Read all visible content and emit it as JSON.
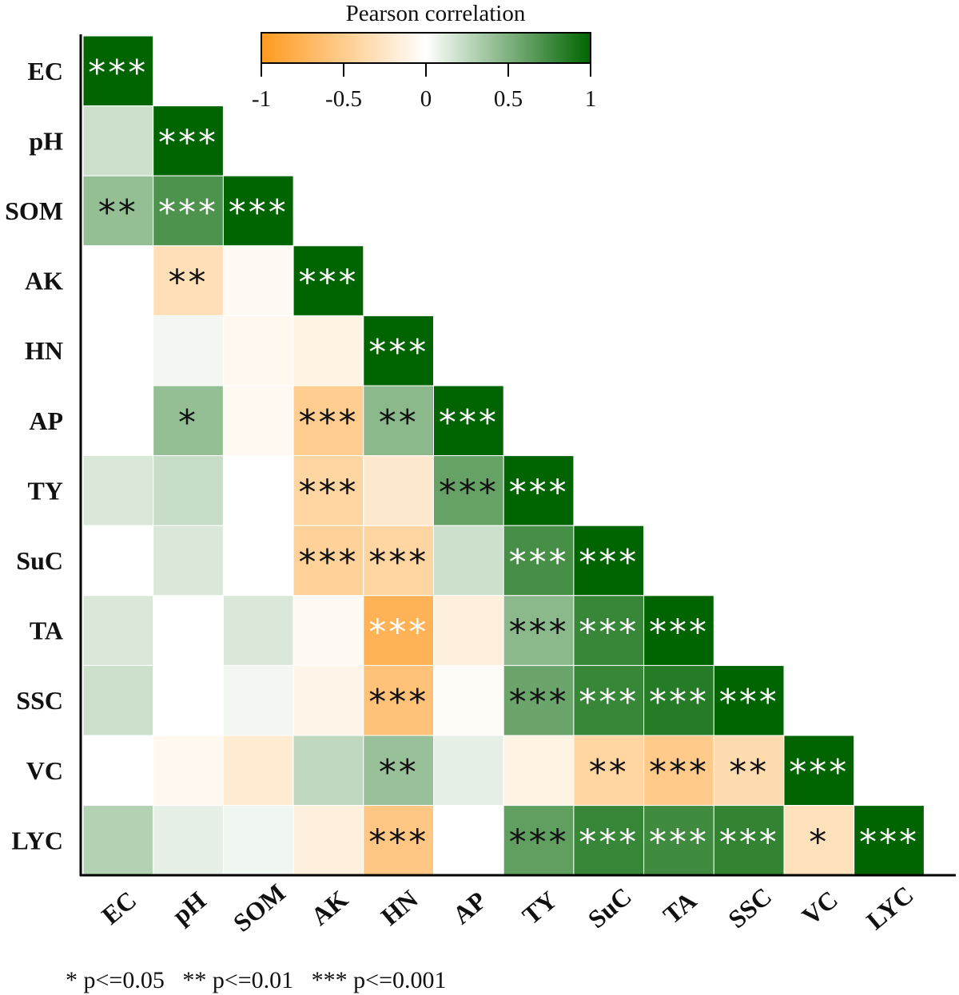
{
  "chart_data": {
    "type": "heatmap",
    "title": "",
    "variables": [
      "EC",
      "pH",
      "SOM",
      "AK",
      "HN",
      "AP",
      "TY",
      "SuC",
      "TA",
      "SSC",
      "VC",
      "LYC"
    ],
    "matrix_lower": [
      [
        1.0
      ],
      [
        0.2,
        1.0
      ],
      [
        0.42,
        0.7,
        1.0
      ],
      [
        0.0,
        -0.32,
        -0.05,
        1.0
      ],
      [
        0.0,
        0.05,
        -0.07,
        -0.12,
        1.0
      ],
      [
        0.0,
        0.42,
        -0.06,
        -0.5,
        0.45,
        1.0
      ],
      [
        0.15,
        0.22,
        0.0,
        -0.42,
        -0.22,
        0.6,
        1.0
      ],
      [
        0.0,
        0.15,
        0.0,
        -0.45,
        -0.42,
        0.2,
        0.72,
        1.0
      ],
      [
        0.15,
        0.0,
        0.15,
        -0.05,
        -0.75,
        -0.15,
        0.45,
        0.78,
        1.0
      ],
      [
        0.2,
        0.0,
        0.05,
        -0.1,
        -0.6,
        -0.03,
        0.58,
        0.78,
        0.85,
        1.0
      ],
      [
        0.0,
        -0.07,
        -0.2,
        0.25,
        0.4,
        0.1,
        -0.12,
        -0.42,
        -0.52,
        -0.35,
        1.0
      ],
      [
        0.3,
        0.1,
        0.06,
        -0.15,
        -0.55,
        0.0,
        0.62,
        0.78,
        0.75,
        0.8,
        -0.3,
        1.0
      ]
    ],
    "significance_lower": [
      [
        "***"
      ],
      [
        "",
        "***"
      ],
      [
        "**",
        "***",
        "***"
      ],
      [
        "",
        "**",
        "",
        "***"
      ],
      [
        "",
        "",
        "",
        "",
        "***"
      ],
      [
        "",
        "*",
        "",
        "***",
        "**",
        "***"
      ],
      [
        "",
        "",
        "",
        "***",
        "",
        "***",
        "***"
      ],
      [
        "",
        "",
        "",
        "***",
        "***",
        "",
        "***",
        "***"
      ],
      [
        "",
        "",
        "",
        "",
        "***",
        "",
        "***",
        "***",
        "***"
      ],
      [
        "",
        "",
        "",
        "",
        "***",
        "",
        "***",
        "***",
        "***",
        "***"
      ],
      [
        "",
        "",
        "",
        "",
        "**",
        "",
        "",
        "**",
        "***",
        "**",
        "***"
      ],
      [
        "",
        "",
        "",
        "",
        "***",
        "",
        "***",
        "***",
        "***",
        "***",
        "*",
        "***"
      ]
    ],
    "colorbar": {
      "title": "Pearson correlation",
      "range": [
        -1,
        1
      ],
      "ticks": [
        "-1",
        "-0.5",
        "0",
        "0.5",
        "1"
      ],
      "tick_values": [
        -1,
        -0.5,
        0,
        0.5,
        1
      ],
      "colors": {
        "negative": "#FF9A1E",
        "zero": "#FFFFFF",
        "positive": "#006400"
      }
    },
    "footnote": "* p<=0.05   ** p<=0.01   *** p<=0.001"
  }
}
